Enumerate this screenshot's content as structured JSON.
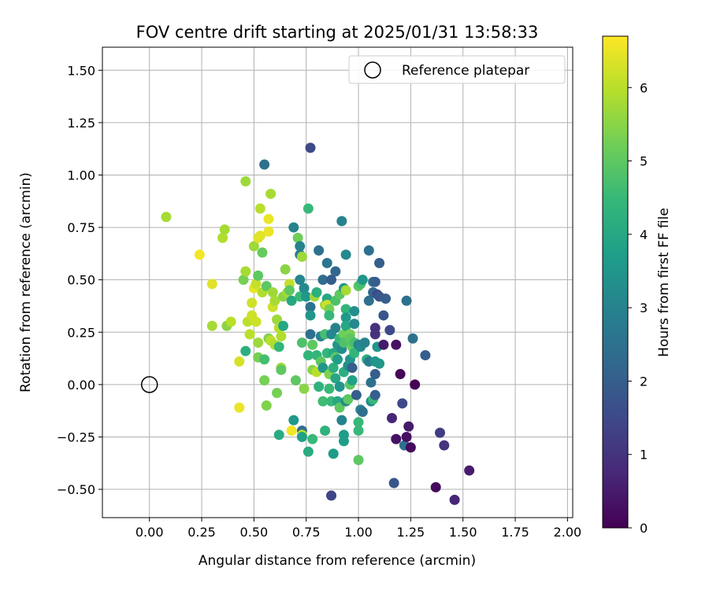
{
  "chart_data": {
    "type": "scatter",
    "title": "FOV centre drift starting at 2025/01/31 13:58:33",
    "xlabel": "Angular distance from reference (arcmin)",
    "ylabel": "Rotation from reference (arcmin)",
    "xlim": [
      -0.225,
      2.025
    ],
    "ylim": [
      -0.635,
      1.61
    ],
    "xticks": [
      0.0,
      0.25,
      0.5,
      0.75,
      1.0,
      1.25,
      1.5,
      1.75,
      2.0
    ],
    "xtick_labels": [
      "0.00",
      "0.25",
      "0.50",
      "0.75",
      "1.00",
      "1.25",
      "1.50",
      "1.75",
      "2.00"
    ],
    "yticks": [
      -0.5,
      -0.25,
      0.0,
      0.25,
      0.5,
      0.75,
      1.0,
      1.25,
      1.5
    ],
    "ytick_labels": [
      "−0.50",
      "−0.25",
      "0.00",
      "0.25",
      "0.50",
      "0.75",
      "1.00",
      "1.25",
      "1.50"
    ],
    "grid": true,
    "legend": {
      "placement": "top-right",
      "entries": [
        "Reference platepar"
      ]
    },
    "reference_point": {
      "name": "Reference platepar",
      "x": 0.0,
      "y": 0.0,
      "marker": "open-circle"
    },
    "colorbar": {
      "label": "Hours from first FF file",
      "min": 0,
      "max": 6.7,
      "ticks": [
        0,
        1,
        2,
        3,
        4,
        5,
        6
      ],
      "tick_labels": [
        "0",
        "1",
        "2",
        "3",
        "4",
        "5",
        "6"
      ],
      "colormap": "viridis",
      "stops": [
        "#440154",
        "#482878",
        "#3e4989",
        "#31688e",
        "#26828e",
        "#1f9e89",
        "#35b779",
        "#6ece58",
        "#b5de2b",
        "#fde725"
      ]
    },
    "points": [
      {
        "x": 0.08,
        "y": 0.8,
        "c": 5.8
      },
      {
        "x": 0.24,
        "y": 0.62,
        "c": 6.6
      },
      {
        "x": 0.3,
        "y": 0.48,
        "c": 6.4
      },
      {
        "x": 0.3,
        "y": 0.28,
        "c": 5.8
      },
      {
        "x": 0.35,
        "y": 0.7,
        "c": 5.9
      },
      {
        "x": 0.36,
        "y": 0.74,
        "c": 5.8
      },
      {
        "x": 0.37,
        "y": 0.28,
        "c": 5.5
      },
      {
        "x": 0.39,
        "y": 0.3,
        "c": 6.0
      },
      {
        "x": 0.43,
        "y": 0.11,
        "c": 6.3
      },
      {
        "x": 0.43,
        "y": -0.11,
        "c": 6.5
      },
      {
        "x": 0.45,
        "y": 0.5,
        "c": 5.3
      },
      {
        "x": 0.46,
        "y": 0.97,
        "c": 5.7
      },
      {
        "x": 0.46,
        "y": 0.54,
        "c": 5.8
      },
      {
        "x": 0.46,
        "y": 0.16,
        "c": 4.2
      },
      {
        "x": 0.47,
        "y": 0.3,
        "c": 6.0
      },
      {
        "x": 0.48,
        "y": 0.24,
        "c": 6.0
      },
      {
        "x": 0.49,
        "y": 0.39,
        "c": 6.2
      },
      {
        "x": 0.49,
        "y": 0.33,
        "c": 6.2
      },
      {
        "x": 0.5,
        "y": 0.46,
        "c": 6.5
      },
      {
        "x": 0.5,
        "y": 0.66,
        "c": 5.7
      },
      {
        "x": 0.51,
        "y": 0.3,
        "c": 6.2
      },
      {
        "x": 0.51,
        "y": 0.48,
        "c": 6.1
      },
      {
        "x": 0.52,
        "y": 0.52,
        "c": 5.0
      },
      {
        "x": 0.52,
        "y": 0.7,
        "c": 6.4
      },
      {
        "x": 0.52,
        "y": 0.2,
        "c": 5.7
      },
      {
        "x": 0.52,
        "y": 0.13,
        "c": 5.3
      },
      {
        "x": 0.53,
        "y": 0.84,
        "c": 6.0
      },
      {
        "x": 0.53,
        "y": 0.71,
        "c": 6.4
      },
      {
        "x": 0.54,
        "y": 0.44,
        "c": 5.9
      },
      {
        "x": 0.54,
        "y": 0.63,
        "c": 5.1
      },
      {
        "x": 0.55,
        "y": 1.05,
        "c": 2.5
      },
      {
        "x": 0.55,
        "y": 0.12,
        "c": 4.7
      },
      {
        "x": 0.55,
        "y": 0.02,
        "c": 5.3
      },
      {
        "x": 0.56,
        "y": 0.47,
        "c": 5.0
      },
      {
        "x": 0.56,
        "y": -0.1,
        "c": 5.4
      },
      {
        "x": 0.57,
        "y": 0.79,
        "c": 6.5
      },
      {
        "x": 0.57,
        "y": 0.73,
        "c": 6.5
      },
      {
        "x": 0.57,
        "y": 0.22,
        "c": 5.4
      },
      {
        "x": 0.58,
        "y": 0.91,
        "c": 5.8
      },
      {
        "x": 0.58,
        "y": 0.21,
        "c": 6.0
      },
      {
        "x": 0.59,
        "y": 0.44,
        "c": 5.7
      },
      {
        "x": 0.59,
        "y": 0.37,
        "c": 6.2
      },
      {
        "x": 0.6,
        "y": 0.4,
        "c": 5.8
      },
      {
        "x": 0.6,
        "y": 0.19,
        "c": 5.9
      },
      {
        "x": 0.61,
        "y": -0.04,
        "c": 5.3
      },
      {
        "x": 0.61,
        "y": 0.31,
        "c": 5.7
      },
      {
        "x": 0.62,
        "y": 0.27,
        "c": 6.0
      },
      {
        "x": 0.62,
        "y": 0.18,
        "c": 4.4
      },
      {
        "x": 0.62,
        "y": -0.24,
        "c": 4.1
      },
      {
        "x": 0.63,
        "y": 0.23,
        "c": 5.9
      },
      {
        "x": 0.63,
        "y": 0.08,
        "c": 5.7
      },
      {
        "x": 0.63,
        "y": 0.07,
        "c": 5.0
      },
      {
        "x": 0.64,
        "y": 0.28,
        "c": 4.0
      },
      {
        "x": 0.64,
        "y": 0.42,
        "c": 5.5
      },
      {
        "x": 0.65,
        "y": 0.55,
        "c": 5.5
      },
      {
        "x": 0.66,
        "y": 0.44,
        "c": 5.8
      },
      {
        "x": 0.67,
        "y": 0.48,
        "c": 6.1
      },
      {
        "x": 0.67,
        "y": 0.45,
        "c": 5.0
      },
      {
        "x": 0.68,
        "y": -0.22,
        "c": 6.6
      },
      {
        "x": 0.68,
        "y": 0.4,
        "c": 4.0
      },
      {
        "x": 0.69,
        "y": 0.75,
        "c": 3.0
      },
      {
        "x": 0.69,
        "y": -0.17,
        "c": 3.6
      },
      {
        "x": 0.7,
        "y": 0.02,
        "c": 5.0
      },
      {
        "x": 0.71,
        "y": 0.7,
        "c": 5.2
      },
      {
        "x": 0.72,
        "y": 0.66,
        "c": 3.0
      },
      {
        "x": 0.72,
        "y": 0.62,
        "c": 2.8
      },
      {
        "x": 0.72,
        "y": 0.5,
        "c": 3.1
      },
      {
        "x": 0.72,
        "y": 0.42,
        "c": 4.5
      },
      {
        "x": 0.73,
        "y": 0.61,
        "c": 5.7
      },
      {
        "x": 0.73,
        "y": 0.2,
        "c": 4.8
      },
      {
        "x": 0.73,
        "y": -0.22,
        "c": 2.4
      },
      {
        "x": 0.73,
        "y": -0.24,
        "c": 6.0
      },
      {
        "x": 0.73,
        "y": -0.25,
        "c": 3.8
      },
      {
        "x": 0.74,
        "y": 0.46,
        "c": 3.2
      },
      {
        "x": 0.74,
        "y": -0.02,
        "c": 5.5
      },
      {
        "x": 0.75,
        "y": 0.42,
        "c": 3.5
      },
      {
        "x": 0.76,
        "y": 0.84,
        "c": 4.5
      },
      {
        "x": 0.76,
        "y": 0.14,
        "c": 4.4
      },
      {
        "x": 0.76,
        "y": -0.32,
        "c": 4.1
      },
      {
        "x": 0.77,
        "y": 1.13,
        "c": 1.5
      },
      {
        "x": 0.77,
        "y": 0.37,
        "c": 2.5
      },
      {
        "x": 0.77,
        "y": 0.33,
        "c": 3.5
      },
      {
        "x": 0.77,
        "y": 0.24,
        "c": 2.5
      },
      {
        "x": 0.78,
        "y": 0.19,
        "c": 5.0
      },
      {
        "x": 0.78,
        "y": 0.07,
        "c": 5.5
      },
      {
        "x": 0.78,
        "y": -0.26,
        "c": 4.5
      },
      {
        "x": 0.79,
        "y": 0.42,
        "c": 5.7
      },
      {
        "x": 0.8,
        "y": 0.44,
        "c": 4.2
      },
      {
        "x": 0.8,
        "y": 0.14,
        "c": 4.4
      },
      {
        "x": 0.8,
        "y": 0.06,
        "c": 6.0
      },
      {
        "x": 0.81,
        "y": 0.64,
        "c": 2.5
      },
      {
        "x": 0.81,
        "y": -0.01,
        "c": 4.3
      },
      {
        "x": 0.82,
        "y": 0.23,
        "c": 3.0
      },
      {
        "x": 0.82,
        "y": 0.11,
        "c": 5.0
      },
      {
        "x": 0.83,
        "y": 0.5,
        "c": 2.4
      },
      {
        "x": 0.83,
        "y": 0.08,
        "c": 3.5
      },
      {
        "x": 0.83,
        "y": -0.08,
        "c": 4.6
      },
      {
        "x": 0.84,
        "y": 0.38,
        "c": 5.7
      },
      {
        "x": 0.84,
        "y": 0.24,
        "c": 4.7
      },
      {
        "x": 0.84,
        "y": -0.22,
        "c": 4.3
      },
      {
        "x": 0.85,
        "y": 0.58,
        "c": 2.6
      },
      {
        "x": 0.85,
        "y": 0.41,
        "c": 4.0
      },
      {
        "x": 0.85,
        "y": 0.38,
        "c": 6.2
      },
      {
        "x": 0.85,
        "y": 0.15,
        "c": 4.4
      },
      {
        "x": 0.86,
        "y": 0.36,
        "c": 5.3
      },
      {
        "x": 0.86,
        "y": 0.33,
        "c": 4.5
      },
      {
        "x": 0.86,
        "y": 0.05,
        "c": 5.4
      },
      {
        "x": 0.86,
        "y": -0.02,
        "c": 4.5
      },
      {
        "x": 0.87,
        "y": 0.5,
        "c": 2.0
      },
      {
        "x": 0.87,
        "y": 0.24,
        "c": 3.2
      },
      {
        "x": 0.87,
        "y": -0.08,
        "c": 4.5
      },
      {
        "x": 0.87,
        "y": -0.53,
        "c": 1.4
      },
      {
        "x": 0.88,
        "y": 0.15,
        "c": 4.0
      },
      {
        "x": 0.88,
        "y": 0.08,
        "c": 4.2
      },
      {
        "x": 0.88,
        "y": -0.33,
        "c": 3.7
      },
      {
        "x": 0.89,
        "y": 0.54,
        "c": 2.2
      },
      {
        "x": 0.89,
        "y": 0.4,
        "c": 4.8
      },
      {
        "x": 0.89,
        "y": 0.27,
        "c": 3.0
      },
      {
        "x": 0.89,
        "y": 0.13,
        "c": 5.0
      },
      {
        "x": 0.89,
        "y": 0.03,
        "c": 4.0
      },
      {
        "x": 0.9,
        "y": 0.19,
        "c": 3.5
      },
      {
        "x": 0.9,
        "y": 0.12,
        "c": 3.7
      },
      {
        "x": 0.9,
        "y": -0.08,
        "c": 4.0
      },
      {
        "x": 0.91,
        "y": 0.43,
        "c": 5.0
      },
      {
        "x": 0.91,
        "y": 0.22,
        "c": 4.5
      },
      {
        "x": 0.91,
        "y": -0.01,
        "c": 3.5
      },
      {
        "x": 0.91,
        "y": -0.11,
        "c": 5.0
      },
      {
        "x": 0.92,
        "y": 0.78,
        "c": 3.0
      },
      {
        "x": 0.92,
        "y": 0.17,
        "c": 3.3
      },
      {
        "x": 0.92,
        "y": -0.17,
        "c": 3.0
      },
      {
        "x": 0.93,
        "y": 0.46,
        "c": 3.5
      },
      {
        "x": 0.93,
        "y": 0.24,
        "c": 5.2
      },
      {
        "x": 0.93,
        "y": 0.2,
        "c": 4.8
      },
      {
        "x": 0.93,
        "y": 0.06,
        "c": 4.2
      },
      {
        "x": 0.93,
        "y": -0.24,
        "c": 3.7
      },
      {
        "x": 0.93,
        "y": -0.27,
        "c": 3.7
      },
      {
        "x": 0.94,
        "y": 0.62,
        "c": 3.2
      },
      {
        "x": 0.94,
        "y": 0.45,
        "c": 5.8
      },
      {
        "x": 0.94,
        "y": 0.36,
        "c": 4.4
      },
      {
        "x": 0.94,
        "y": 0.32,
        "c": 3.6
      },
      {
        "x": 0.94,
        "y": 0.28,
        "c": 4.0
      },
      {
        "x": 0.94,
        "y": -0.08,
        "c": 3.2
      },
      {
        "x": 0.95,
        "y": 0.09,
        "c": 3.3
      },
      {
        "x": 0.95,
        "y": -0.07,
        "c": 5.0
      },
      {
        "x": 0.96,
        "y": 0.24,
        "c": 5.3
      },
      {
        "x": 0.96,
        "y": 0.22,
        "c": 5.0
      },
      {
        "x": 0.96,
        "y": 0.12,
        "c": 3.5
      },
      {
        "x": 0.96,
        "y": 0.0,
        "c": 5.0
      },
      {
        "x": 0.97,
        "y": 0.18,
        "c": 5.1
      },
      {
        "x": 0.97,
        "y": 0.08,
        "c": 2.0
      },
      {
        "x": 0.97,
        "y": 0.02,
        "c": 3.8
      },
      {
        "x": 0.98,
        "y": 0.29,
        "c": 3.2
      },
      {
        "x": 0.98,
        "y": 0.2,
        "c": 4.7
      },
      {
        "x": 0.98,
        "y": 0.15,
        "c": 4.4
      },
      {
        "x": 0.98,
        "y": 0.35,
        "c": 3.3
      },
      {
        "x": 0.99,
        "y": -0.05,
        "c": 2.0
      },
      {
        "x": 1.0,
        "y": 0.47,
        "c": 5.0
      },
      {
        "x": 1.0,
        "y": 0.19,
        "c": 3.0
      },
      {
        "x": 1.0,
        "y": -0.18,
        "c": 4.5
      },
      {
        "x": 1.0,
        "y": -0.22,
        "c": 4.5
      },
      {
        "x": 1.0,
        "y": -0.36,
        "c": 5.0
      },
      {
        "x": 1.01,
        "y": 0.48,
        "c": 4.7
      },
      {
        "x": 1.01,
        "y": 0.18,
        "c": 3.2
      },
      {
        "x": 1.01,
        "y": -0.12,
        "c": 3.0
      },
      {
        "x": 1.02,
        "y": 0.5,
        "c": 3.5
      },
      {
        "x": 1.02,
        "y": -0.13,
        "c": 2.5
      },
      {
        "x": 1.03,
        "y": 0.2,
        "c": 3.0
      },
      {
        "x": 1.04,
        "y": 0.12,
        "c": 4.2
      },
      {
        "x": 1.05,
        "y": 0.64,
        "c": 2.5
      },
      {
        "x": 1.05,
        "y": 0.4,
        "c": 2.5
      },
      {
        "x": 1.05,
        "y": 0.11,
        "c": 2.8
      },
      {
        "x": 1.06,
        "y": 0.01,
        "c": 2.5
      },
      {
        "x": 1.06,
        "y": -0.08,
        "c": 3.3
      },
      {
        "x": 1.07,
        "y": 0.49,
        "c": 2.6
      },
      {
        "x": 1.07,
        "y": 0.44,
        "c": 2.2
      },
      {
        "x": 1.07,
        "y": -0.07,
        "c": 4.5
      },
      {
        "x": 1.08,
        "y": 0.49,
        "c": 2.0
      },
      {
        "x": 1.08,
        "y": 0.27,
        "c": 1.0
      },
      {
        "x": 1.08,
        "y": 0.24,
        "c": 1.0
      },
      {
        "x": 1.08,
        "y": 0.11,
        "c": 3.5
      },
      {
        "x": 1.08,
        "y": 0.05,
        "c": 2.0
      },
      {
        "x": 1.08,
        "y": -0.05,
        "c": 2.0
      },
      {
        "x": 1.09,
        "y": 0.43,
        "c": 1.5
      },
      {
        "x": 1.09,
        "y": 0.18,
        "c": 3.5
      },
      {
        "x": 1.1,
        "y": 0.58,
        "c": 2.0
      },
      {
        "x": 1.1,
        "y": 0.42,
        "c": 1.8
      },
      {
        "x": 1.1,
        "y": 0.1,
        "c": 3.5
      },
      {
        "x": 1.12,
        "y": 0.33,
        "c": 1.8
      },
      {
        "x": 1.12,
        "y": 0.19,
        "c": 0.5
      },
      {
        "x": 1.13,
        "y": 0.41,
        "c": 2.0
      },
      {
        "x": 1.15,
        "y": 0.26,
        "c": 1.5
      },
      {
        "x": 1.16,
        "y": -0.16,
        "c": 0.7
      },
      {
        "x": 1.17,
        "y": -0.47,
        "c": 1.8
      },
      {
        "x": 1.18,
        "y": 0.19,
        "c": 0.3
      },
      {
        "x": 1.18,
        "y": -0.26,
        "c": 0.3
      },
      {
        "x": 1.2,
        "y": 0.05,
        "c": 0.1
      },
      {
        "x": 1.21,
        "y": -0.09,
        "c": 1.5
      },
      {
        "x": 1.22,
        "y": -0.29,
        "c": 2.5
      },
      {
        "x": 1.23,
        "y": 0.4,
        "c": 2.5
      },
      {
        "x": 1.23,
        "y": -0.25,
        "c": 0.3
      },
      {
        "x": 1.24,
        "y": -0.2,
        "c": 0.5
      },
      {
        "x": 1.25,
        "y": -0.3,
        "c": 0.2
      },
      {
        "x": 1.26,
        "y": 0.22,
        "c": 2.5
      },
      {
        "x": 1.27,
        "y": 0.0,
        "c": 0.0
      },
      {
        "x": 1.32,
        "y": 0.14,
        "c": 2.0
      },
      {
        "x": 1.37,
        "y": -0.49,
        "c": 0.2
      },
      {
        "x": 1.39,
        "y": -0.23,
        "c": 1.2
      },
      {
        "x": 1.41,
        "y": -0.29,
        "c": 1.0
      },
      {
        "x": 1.46,
        "y": -0.55,
        "c": 0.7
      },
      {
        "x": 1.53,
        "y": -0.41,
        "c": 0.5
      }
    ]
  }
}
